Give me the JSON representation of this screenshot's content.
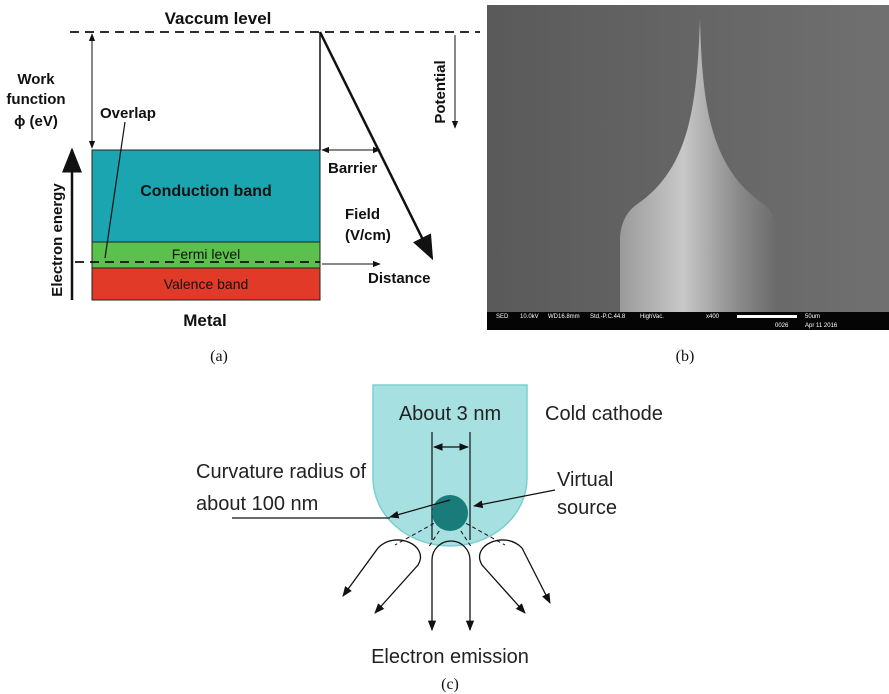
{
  "panel_a": {
    "title": "Vaccum level",
    "work_function": [
      "Work",
      "function",
      "ϕ (eV)"
    ],
    "overlap": "Overlap",
    "axis_label": "Electron energy",
    "conduction_band": "Conduction band",
    "fermi_level": "Fermi level",
    "valence_band": "Valence band",
    "metal": "Metal",
    "barrier": "Barrier",
    "field": [
      "Field",
      "(V/cm)"
    ],
    "distance": "Distance",
    "potential": "Potential",
    "caption": "(a)"
  },
  "panel_b": {
    "info_bar": [
      "SED",
      "10.0kV",
      "WD16.8mm",
      "Std.-P.C.44.8",
      "HighVac.",
      "x400",
      "50um",
      "0026",
      "Apr 11 2016"
    ],
    "caption": "(b)"
  },
  "panel_c": {
    "gap": "About 3 nm",
    "cathode": "Cold cathode",
    "curvature": [
      "Curvature radius of",
      "about 100 nm"
    ],
    "source": [
      "Virtual",
      "source"
    ],
    "emission": "Electron emission",
    "caption": "(c)"
  }
}
